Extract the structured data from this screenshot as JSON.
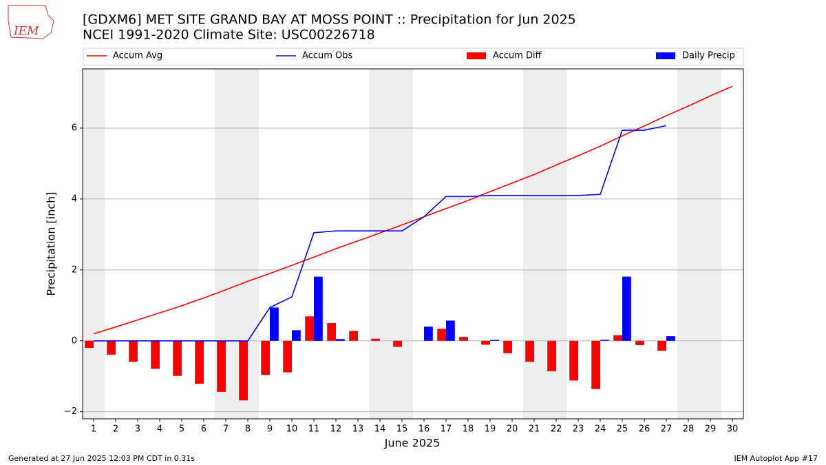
{
  "logo": "IEM",
  "footer_left": "Generated at 27 Jun 2025 12:03 PM CDT in 0.31s",
  "footer_right": "IEM Autoplot App #17",
  "chart_data": {
    "type": "combo",
    "title": "[GDXM6] MET SITE GRAND BAY AT MOSS POINT :: Precipitation for Jun 2025",
    "subtitle": "NCEI 1991-2020 Climate Site: USC00226718",
    "x_label": "June 2025",
    "y_label": "Precipitation [inch]",
    "x": [
      1,
      2,
      3,
      4,
      5,
      6,
      7,
      8,
      9,
      10,
      11,
      12,
      13,
      14,
      15,
      16,
      17,
      18,
      19,
      20,
      21,
      22,
      23,
      24,
      25,
      26,
      27,
      28,
      29,
      30
    ],
    "xlim": [
      0.5,
      30.5
    ],
    "xticks": [
      1,
      2,
      3,
      4,
      5,
      6,
      7,
      8,
      9,
      10,
      11,
      12,
      13,
      14,
      15,
      16,
      17,
      18,
      19,
      20,
      21,
      22,
      23,
      24,
      25,
      26,
      27,
      28,
      29,
      30
    ],
    "ylim": [
      -2.2,
      7.67
    ],
    "yticks": [
      {
        "value": -2,
        "label": "−2"
      },
      0,
      2,
      4,
      6
    ],
    "grid": true,
    "series": [
      {
        "name": "Accum Avg",
        "type": "line",
        "color": "#ff0000",
        "values": [
          0.2,
          0.39,
          0.59,
          0.79,
          0.99,
          1.21,
          1.44,
          1.68,
          1.9,
          2.13,
          2.36,
          2.6,
          2.82,
          3.04,
          3.27,
          3.5,
          3.73,
          3.96,
          4.21,
          4.45,
          4.69,
          4.96,
          5.22,
          5.49,
          5.78,
          6.06,
          6.35,
          6.62,
          6.91,
          7.18
        ]
      },
      {
        "name": "Accum Obs",
        "type": "line",
        "color": "#0000ff",
        "values": [
          0,
          0,
          0,
          0,
          0,
          0,
          0,
          0,
          0.94,
          1.24,
          3.05,
          3.1,
          3.1,
          3.1,
          3.1,
          3.5,
          4.07,
          4.07,
          4.1,
          4.1,
          4.1,
          4.1,
          4.1,
          4.13,
          5.94,
          5.94,
          6.07,
          null,
          null,
          null
        ]
      },
      {
        "name": "Accum Diff",
        "type": "bar",
        "color": "#ff0000",
        "values": [
          -0.2,
          -0.39,
          -0.59,
          -0.79,
          -0.99,
          -1.21,
          -1.44,
          -1.68,
          -0.96,
          -0.89,
          0.69,
          0.5,
          0.28,
          0.06,
          -0.17,
          0,
          0.34,
          0.11,
          -0.11,
          -0.35,
          -0.59,
          -0.86,
          -1.12,
          -1.36,
          0.16,
          -0.12,
          -0.28,
          null,
          null,
          null
        ]
      },
      {
        "name": "Daily Precip",
        "type": "bar",
        "color": "#0000ff",
        "values": [
          0,
          0,
          0,
          0,
          0,
          0,
          0,
          0,
          0.94,
          0.3,
          1.81,
          0.05,
          0,
          0,
          0,
          0.4,
          0.57,
          0,
          0.03,
          0,
          0,
          0,
          0,
          0.03,
          1.81,
          0,
          0.13,
          null,
          null,
          null
        ]
      }
    ]
  }
}
